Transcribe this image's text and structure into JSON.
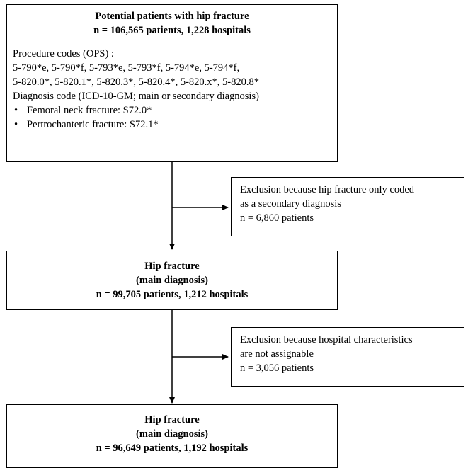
{
  "box1": {
    "title": "Potential patients with hip fracture",
    "count": "n = 106,565 patients, 1,228 hospitals"
  },
  "box2": {
    "heading": "Procedure codes (OPS) :",
    "codes_line1": "5-790*e, 5-790*f, 5-793*e, 5-793*f, 5-794*e, 5-794*f,",
    "codes_line2": "5-820.0*, 5-820.1*, 5-820.3*, 5-820.4*, 5-820.x*, 5-820.8*",
    "diagnosis": "Diagnosis code (ICD-10-GM; main or secondary diagnosis)",
    "bullets": [
      "Femoral neck fracture: S72.0*",
      "Pertrochanteric fracture: S72.1*"
    ]
  },
  "exclusion1": {
    "line1": "Exclusion because hip fracture only coded",
    "line2": "as a secondary diagnosis",
    "count": "n = 6,860 patients"
  },
  "box3": {
    "title": "Hip fracture",
    "subtitle": "(main diagnosis)",
    "count": "n = 99,705 patients, 1,212 hospitals"
  },
  "exclusion2": {
    "line1": "Exclusion because hospital characteristics",
    "line2": "are not assignable",
    "count": "n = 3,056 patients"
  },
  "box4": {
    "title": "Hip fracture",
    "subtitle": "(main diagnosis)",
    "count": "n = 96,649 patients, 1,192 hospitals"
  }
}
